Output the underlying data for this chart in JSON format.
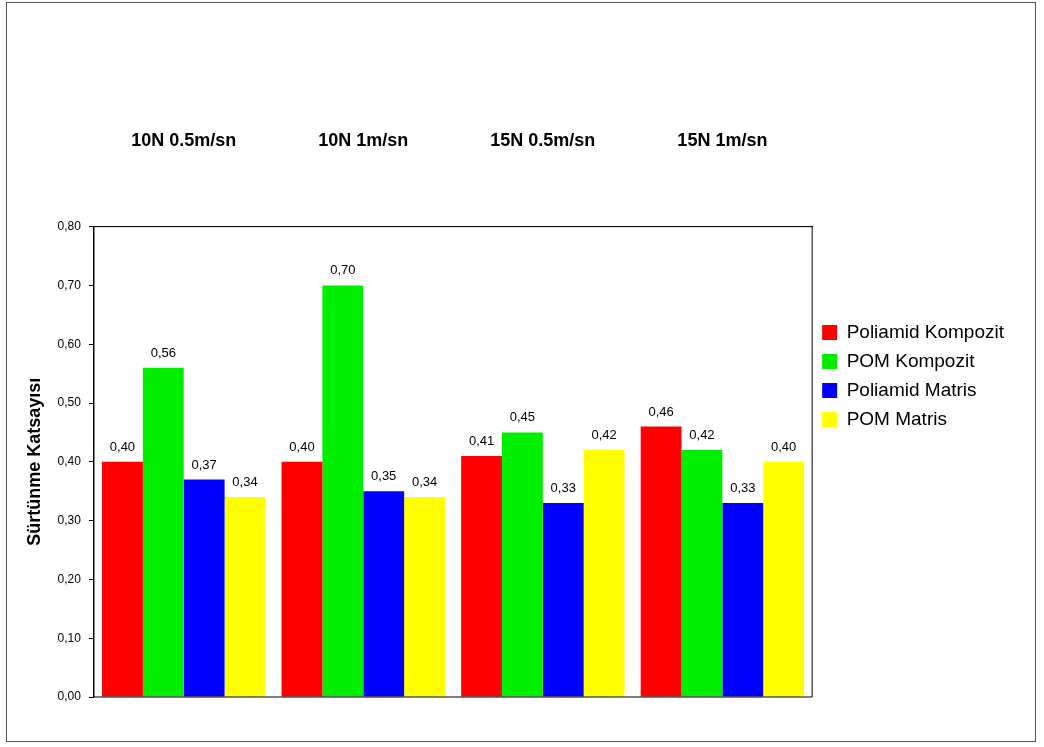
{
  "chart_data": {
    "type": "bar",
    "ylabel": "Sürtünme Katsayısı",
    "categories": [
      "10N 0.5m/sn",
      "10N 1m/sn",
      "15N 0.5m/sn",
      "15N 1m/sn"
    ],
    "series": [
      {
        "name": "Poliamid Kompozit",
        "color": "#ff0000",
        "values": [
          0.4,
          0.4,
          0.41,
          0.46
        ],
        "value_labels": [
          "0,40",
          "0,40",
          "0,41",
          "0,46"
        ]
      },
      {
        "name": "POM Kompozit",
        "color": "#00ee00",
        "values": [
          0.56,
          0.7,
          0.45,
          0.42
        ],
        "value_labels": [
          "0,56",
          "0,70",
          "0,45",
          "0,42"
        ]
      },
      {
        "name": "Poliamid Matris",
        "color": "#0000ff",
        "values": [
          0.37,
          0.35,
          0.33,
          0.33
        ],
        "value_labels": [
          "0,37",
          "0,35",
          "0,33",
          "0,33"
        ]
      },
      {
        "name": "POM Matris",
        "color": "#ffff00",
        "values": [
          0.34,
          0.34,
          0.42,
          0.4
        ],
        "value_labels": [
          "0,34",
          "0,34",
          "0,42",
          "0,40"
        ]
      }
    ],
    "ylim": [
      0,
      0.8
    ],
    "yticks": [
      {
        "value": 0,
        "label": "0,00"
      },
      {
        "value": 0.1,
        "label": "0,10"
      },
      {
        "value": 0.2,
        "label": "0,20"
      },
      {
        "value": 0.3,
        "label": "0,30"
      },
      {
        "value": 0.4,
        "label": "0,40"
      },
      {
        "value": 0.5,
        "label": "0,50"
      },
      {
        "value": 0.6,
        "label": "0,60"
      },
      {
        "value": 0.7,
        "label": "0,70"
      },
      {
        "value": 0.8,
        "label": "0,80"
      }
    ],
    "grid": false,
    "legend": "right"
  }
}
